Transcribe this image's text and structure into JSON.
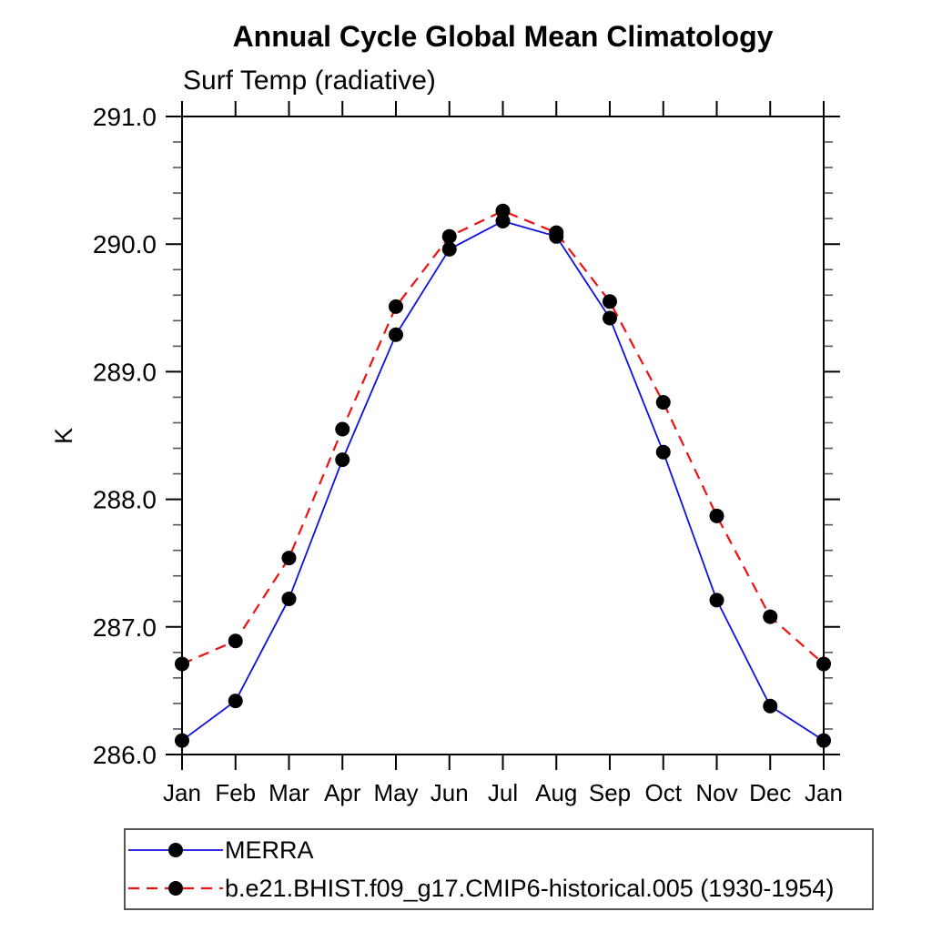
{
  "chart_data": {
    "type": "line",
    "title": "Annual Cycle Global Mean Climatology",
    "subtitle": "Surf Temp (radiative)",
    "ylabel": "K",
    "categories": [
      "Jan",
      "Feb",
      "Mar",
      "Apr",
      "May",
      "Jun",
      "Jul",
      "Aug",
      "Sep",
      "Oct",
      "Nov",
      "Dec",
      "Jan"
    ],
    "ylim": [
      286.0,
      291.0
    ],
    "y_major_step": 1.0,
    "y_minor_step": 0.2,
    "y_tick_labels": [
      "286.0",
      "287.0",
      "288.0",
      "289.0",
      "290.0",
      "291.0"
    ],
    "grid": false,
    "legend_position": "bottom-left",
    "marker_color": "#000000",
    "axis_color": "#000000",
    "series": [
      {
        "name": "MERRA",
        "color": "#1010dd",
        "line_style": "solid",
        "values": [
          286.11,
          286.42,
          287.22,
          288.31,
          289.29,
          289.96,
          290.18,
          290.06,
          289.42,
          288.37,
          287.21,
          286.38,
          286.11
        ]
      },
      {
        "name": "b.e21.BHIST.f09_g17.CMIP6-historical.005 (1930-1954)",
        "color": "#ee1111",
        "line_style": "dashed",
        "values": [
          286.71,
          286.89,
          287.54,
          288.55,
          289.51,
          290.06,
          290.26,
          290.09,
          289.55,
          288.76,
          287.87,
          287.08,
          286.71
        ]
      }
    ]
  }
}
